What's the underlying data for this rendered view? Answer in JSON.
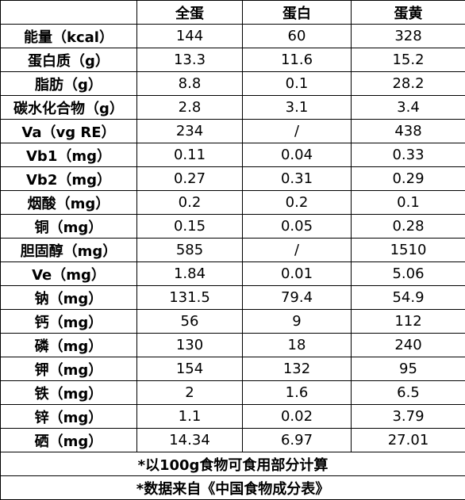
{
  "table": {
    "header": [
      "全蛋",
      "蛋白",
      "蛋黄"
    ],
    "rows": [
      [
        "能量（kcal）",
        "144",
        "60",
        "328"
      ],
      [
        "蛋白质（g）",
        "13.3",
        "11.6",
        "15.2"
      ],
      [
        "脂肪（g）",
        "8.8",
        "0.1",
        "28.2"
      ],
      [
        "碳水化合物（g）",
        "2.8",
        "3.1",
        "3.4"
      ],
      [
        "Va（vg RE）",
        "234",
        "/",
        "438"
      ],
      [
        "Vb1（mg）",
        "0.11",
        "0.04",
        "0.33"
      ],
      [
        "Vb2（mg）",
        "0.27",
        "0.31",
        "0.29"
      ],
      [
        "烟酸（mg）",
        "0.2",
        "0.2",
        "0.1"
      ],
      [
        "铜（mg）",
        "0.15",
        "0.05",
        "0.28"
      ],
      [
        "胆固醇（mg）",
        "585",
        "/",
        "1510"
      ],
      [
        "Ve（mg）",
        "1.84",
        "0.01",
        "5.06"
      ],
      [
        "钠（mg）",
        "131.5",
        "79.4",
        "54.9"
      ],
      [
        "钙（mg）",
        "56",
        "9",
        "112"
      ],
      [
        "磷（mg）",
        "130",
        "18",
        "240"
      ],
      [
        "钾（mg）",
        "154",
        "132",
        "95"
      ],
      [
        "铁（mg）",
        "2",
        "1.6",
        "6.5"
      ],
      [
        "锌（mg）",
        "1.1",
        "0.02",
        "3.79"
      ],
      [
        "硒（mg）",
        "14.34",
        "6.97",
        "27.01"
      ]
    ],
    "notes": [
      "*以100g食物可食用部分计算",
      "*数据来自《中国食物成分表》"
    ]
  }
}
